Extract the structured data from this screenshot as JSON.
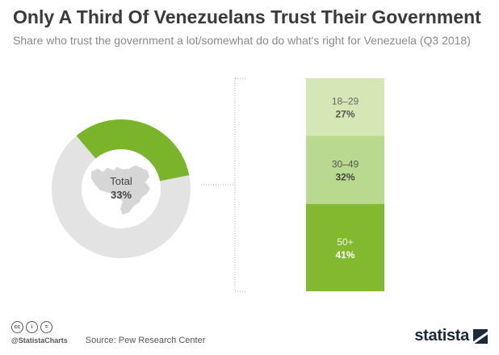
{
  "header": {
    "title": "Only A Third Of Venezuelans Trust Their Government",
    "subtitle": "Share who trust the government a lot/somewhat do do what's right for Venezuela (Q3 2018)"
  },
  "chart_data": {
    "type": "pie",
    "donut": {
      "label": "Total",
      "value": 33,
      "value_label": "33%",
      "remainder": 67
    },
    "breakdown": {
      "type": "stacked-bar",
      "categories": [
        "18–29",
        "30–49",
        "50+"
      ],
      "values": [
        27,
        32,
        41
      ],
      "value_labels": [
        "27%",
        "32%",
        "41%"
      ]
    }
  },
  "colors": {
    "accent": "#7ab42a",
    "remainder": "#e3e3e3",
    "map": "#d6d6d6",
    "band_top": "#d4e7b5",
    "band_mid": "#b9d98e",
    "band_bottom": "#83b92f"
  },
  "footer": {
    "source": "Source: Pew Research Center",
    "handle": "@StatistaCharts",
    "cc_icons": [
      "cc-icon",
      "attribution-icon",
      "noderivs-icon"
    ],
    "brand": "statista"
  }
}
